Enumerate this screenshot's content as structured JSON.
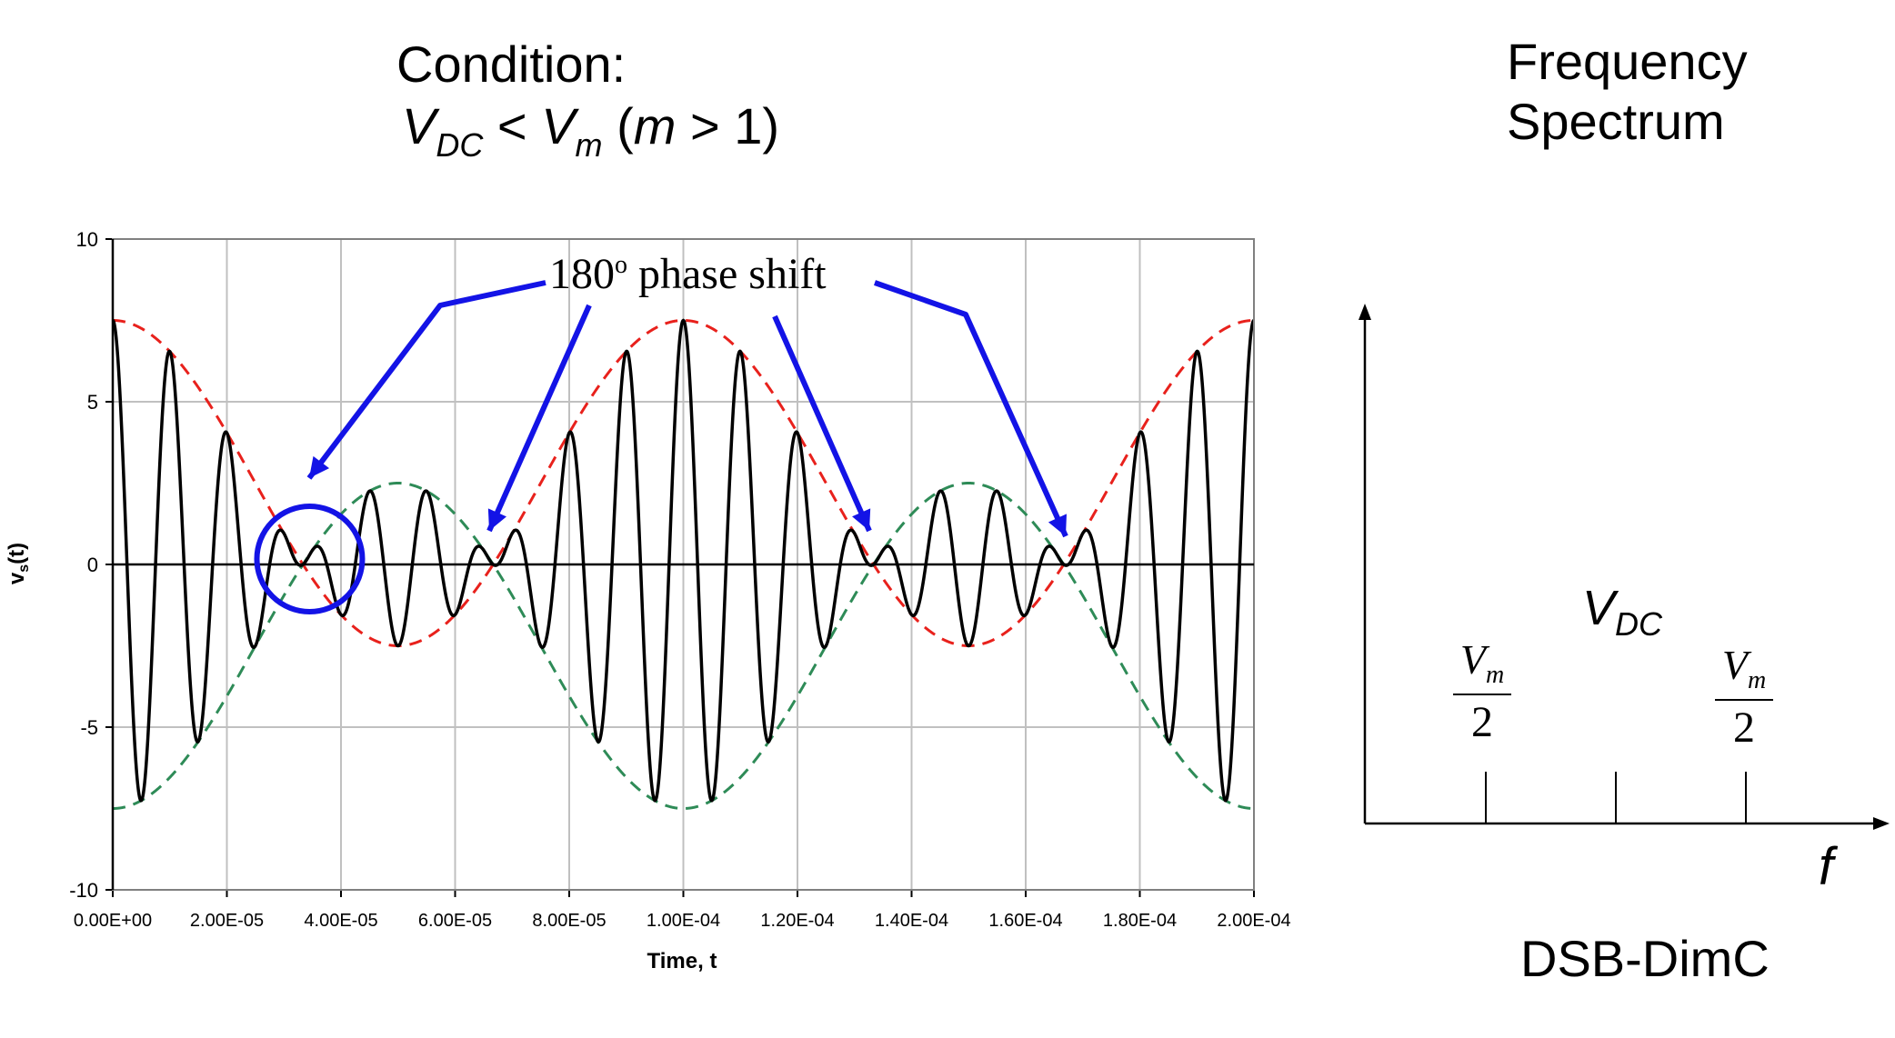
{
  "condition": {
    "heading": "Condition:",
    "lhs": "V",
    "lhs_sub": "DC",
    "op": "<",
    "rhs": "V",
    "rhs_sub": "m",
    "paren_open": "(",
    "m": "m",
    "cond": "> 1)"
  },
  "spectrum": {
    "title_line1": "Frequency",
    "title_line2": "Spectrum",
    "vdc_v": "V",
    "vdc_sub": "DC",
    "vm_num": "V",
    "vm_sub": "m",
    "vm_den": "2",
    "f_label": "f",
    "caption": "DSB-DimC"
  },
  "annotation": {
    "text": "180",
    "sup": "o",
    "rest": " phase shift"
  },
  "chart_data": {
    "type": "line",
    "xlabel": "Time, t",
    "ylabel": "v",
    "ylabel_sub": "s",
    "ylabel_tail": "(t)",
    "xlim": [
      0,
      0.0002
    ],
    "ylim": [
      -10,
      10
    ],
    "x_ticks": [
      "0.00E+00",
      "2.00E-05",
      "4.00E-05",
      "6.00E-05",
      "8.00E-05",
      "1.00E-04",
      "1.20E-04",
      "1.40E-04",
      "1.60E-04",
      "1.80E-04",
      "2.00E-04"
    ],
    "y_ticks": [
      "10",
      "5",
      "0",
      "-5",
      "-10"
    ],
    "y_tick_values": [
      10,
      5,
      0,
      -5,
      -10
    ],
    "grid": true,
    "signal": {
      "dc": 2.5,
      "vm": 5,
      "fm": 10000,
      "fc": 100000
    },
    "series": [
      {
        "name": "",
        "style": "solid",
        "color": "#000000",
        "expr": "(dc + vm*cos(2*pi*fm*t)) * cos(2*pi*fc*t)"
      },
      {
        "name": "",
        "style": "dashed",
        "color": "#e8211c",
        "expr": "dc + vm*cos(2*pi*fm*t)"
      },
      {
        "name": "",
        "style": "dashed",
        "color": "#2e8b57",
        "expr": "-(dc + vm*cos(2*pi*fm*t))"
      }
    ],
    "highlight_circle_x": 3.45e-05
  },
  "colors": {
    "arrow": "#1313e6",
    "grid": "#c0c0c0"
  }
}
